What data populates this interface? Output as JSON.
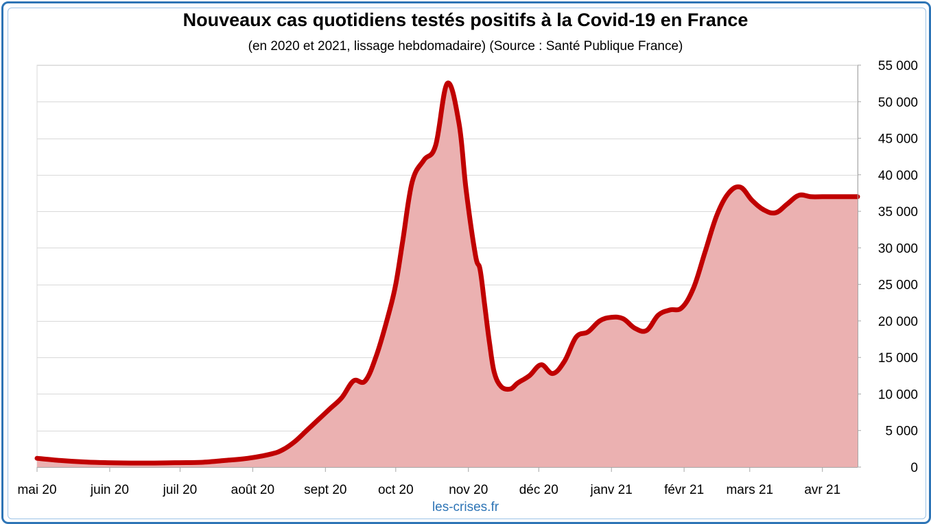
{
  "chart_data": {
    "type": "area",
    "title": "Nouveaux cas quotidiens testés positifs à la Covid-19 en France",
    "subtitle": "(en 2020 et 2021, lissage hebdomadaire) (Source : Santé Publique France)",
    "source_label": "les-crises.fr",
    "xlabel": "",
    "ylabel": "",
    "ylim": [
      0,
      55000
    ],
    "y_ticks": [
      0,
      5000,
      10000,
      15000,
      20000,
      25000,
      30000,
      35000,
      40000,
      45000,
      50000,
      55000
    ],
    "y_tick_labels": [
      "0",
      "5 000",
      "10 000",
      "15 000",
      "20 000",
      "25 000",
      "30 000",
      "35 000",
      "40 000",
      "45 000",
      "50 000",
      "55 000"
    ],
    "y_axis_position": "right",
    "x_ticks": [
      0,
      31,
      61,
      92,
      123,
      153,
      184,
      214,
      245,
      276,
      304,
      335
    ],
    "x_tick_labels": [
      "mai 20",
      "juin 20",
      "juil 20",
      "août 20",
      "sept 20",
      "oct 20",
      "nov 20",
      "déc 20",
      "janv 21",
      "févr 21",
      "mars 21",
      "avr 21"
    ],
    "xlim": [
      0,
      350
    ],
    "grid": true,
    "colors": {
      "line": "#c00000",
      "fill": "#ebb1b1",
      "grid": "#d9d9d9",
      "axis": "#a6a6a6"
    },
    "series": [
      {
        "name": "Nouveaux cas quotidiens",
        "x": [
          0,
          10,
          20,
          30,
          40,
          50,
          60,
          70,
          80,
          90,
          100,
          105,
          110,
          115,
          120,
          125,
          130,
          135,
          140,
          145,
          150,
          153,
          156,
          160,
          165,
          170,
          175,
          180,
          183,
          187,
          189,
          191,
          193,
          195,
          198,
          202,
          205,
          210,
          215,
          220,
          225,
          230,
          235,
          240,
          245,
          250,
          255,
          260,
          265,
          270,
          275,
          280,
          285,
          290,
          295,
          300,
          305,
          310,
          315,
          320,
          325,
          330,
          335,
          338,
          340,
          342,
          344,
          346,
          348,
          350
        ],
        "y": [
          1200,
          900,
          700,
          600,
          550,
          550,
          600,
          650,
          900,
          1200,
          1800,
          2400,
          3500,
          5000,
          6500,
          8000,
          9500,
          11800,
          11800,
          15500,
          21000,
          25000,
          31000,
          39000,
          42000,
          44000,
          52500,
          47000,
          38000,
          29000,
          27000,
          22000,
          17000,
          13000,
          11000,
          10700,
          11500,
          12500,
          14000,
          12800,
          14500,
          17800,
          18500,
          20000,
          20500,
          20300,
          19000,
          18700,
          20800,
          21500,
          21800,
          24500,
          29500,
          34500,
          37500,
          38300,
          36500,
          35200,
          34800,
          36000,
          37200,
          37000,
          37000,
          37000,
          37000,
          37000,
          37000,
          37000,
          37000,
          37000
        ]
      }
    ]
  }
}
